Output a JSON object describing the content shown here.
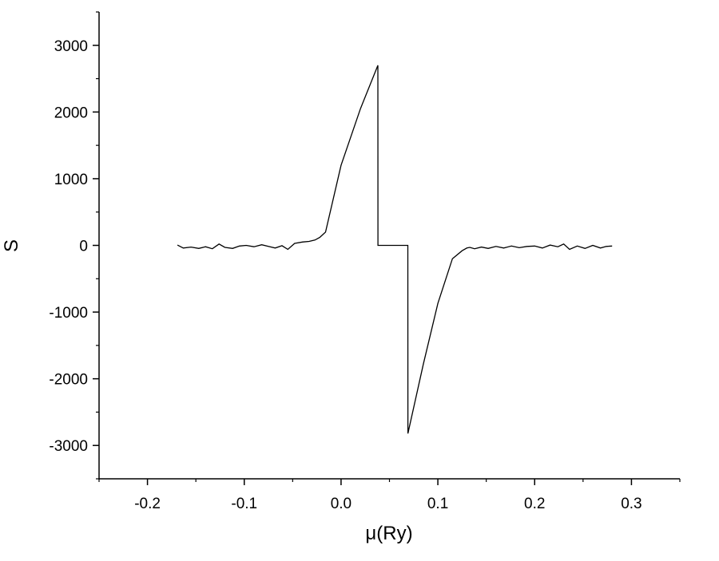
{
  "chart_data": {
    "type": "line",
    "title": "",
    "xlabel": "μ(Ry)",
    "ylabel": "S",
    "xlim": [
      -0.25,
      0.35
    ],
    "ylim": [
      -3500,
      3500
    ],
    "x_ticks": [
      -0.2,
      -0.1,
      0.0,
      0.1,
      0.2,
      0.3
    ],
    "x_tick_labels": [
      "-0.2",
      "-0.1",
      "0.0",
      "0.1",
      "0.2",
      "0.3"
    ],
    "y_ticks": [
      3000,
      2000,
      1000,
      0,
      -1000,
      -2000,
      -3000
    ],
    "y_tick_labels": [
      "3000",
      "2000",
      "1000",
      "0",
      "-1000",
      "-2000",
      "-3000"
    ],
    "grid": false,
    "legend": "none",
    "line_color": "#000000",
    "series": [
      {
        "x": [
          -0.169,
          -0.163,
          -0.155,
          -0.147,
          -0.14,
          -0.133,
          -0.126,
          -0.12,
          -0.112,
          -0.105,
          -0.098,
          -0.09,
          -0.082,
          -0.075,
          -0.068,
          -0.061,
          -0.055,
          -0.048,
          -0.04,
          -0.033,
          -0.027,
          -0.022,
          -0.019,
          -0.016,
          0.0,
          0.02,
          0.038,
          0.0381,
          0.045,
          0.055,
          0.069,
          0.0691,
          0.085,
          0.1,
          0.115,
          0.125,
          0.13,
          0.133,
          0.138,
          0.145,
          0.152,
          0.16,
          0.168,
          0.176,
          0.184,
          0.192,
          0.2,
          0.208,
          0.216,
          0.224,
          0.23,
          0.236,
          0.244,
          0.252,
          0.26,
          0.268,
          0.274,
          0.28
        ],
        "y": [
          5,
          -40,
          -25,
          -45,
          -20,
          -50,
          20,
          -30,
          -45,
          -10,
          0,
          -20,
          10,
          -15,
          -40,
          -5,
          -60,
          30,
          50,
          60,
          80,
          120,
          160,
          200,
          1200,
          2050,
          2700,
          0,
          0,
          0,
          0,
          -2820,
          -1780,
          -870,
          -200,
          -80,
          -40,
          -30,
          -50,
          -25,
          -45,
          -15,
          -40,
          -10,
          -35,
          -15,
          -10,
          -40,
          5,
          -20,
          20,
          -60,
          -10,
          -45,
          0,
          -40,
          -15,
          -10
        ]
      }
    ]
  }
}
